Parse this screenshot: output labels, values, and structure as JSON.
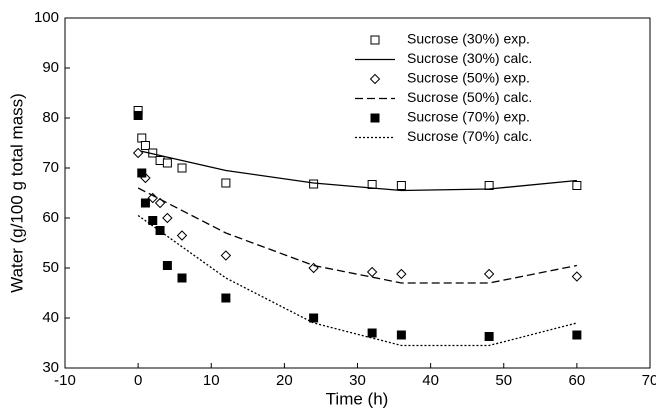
{
  "chart_data": {
    "type": "line",
    "xlabel": "Time (h)",
    "ylabel": "Water (g/100 g total mass)",
    "xlim": [
      -10,
      70
    ],
    "xticks": [
      -10,
      0,
      10,
      20,
      30,
      40,
      50,
      60,
      70
    ],
    "ylim": [
      30,
      100
    ],
    "yticks": [
      30,
      40,
      50,
      60,
      70,
      80,
      90,
      100
    ],
    "legend": "upper-right",
    "series": [
      {
        "name": "Sucrose (30%) exp.",
        "color": "#000000",
        "marker": "open-square",
        "x": [
          0,
          0.5,
          1,
          2,
          3,
          4,
          6,
          12,
          24,
          32,
          36,
          48,
          60
        ],
        "values": [
          81.5,
          76,
          74.5,
          73,
          71.5,
          71,
          70,
          67,
          66.8,
          66.7,
          66.5,
          66.5,
          66.5
        ]
      },
      {
        "name": "Sucrose (30%) calc.",
        "color": "#000000",
        "dash": "solid",
        "x": [
          0,
          12,
          24,
          36,
          48,
          60
        ],
        "values": [
          73.5,
          69.5,
          67,
          65.5,
          65.8,
          67.5
        ]
      },
      {
        "name": "Sucrose (50%) exp.",
        "color": "#000000",
        "marker": "open-diamond",
        "x": [
          0,
          1,
          2,
          3,
          4,
          6,
          12,
          24,
          32,
          36,
          48,
          60
        ],
        "values": [
          73,
          68,
          64,
          63,
          60,
          56.5,
          52.5,
          50,
          49.2,
          48.8,
          48.8,
          48.3
        ]
      },
      {
        "name": "Sucrose (50%) calc.",
        "color": "#000000",
        "dash": "dashed",
        "x": [
          0,
          12,
          24,
          36,
          48,
          60
        ],
        "values": [
          66,
          57,
          50.5,
          47,
          47,
          50.5
        ]
      },
      {
        "name": "Sucrose (70%) exp.",
        "color": "#000000",
        "marker": "filled-square",
        "x": [
          0,
          0.5,
          1,
          2,
          3,
          4,
          6,
          12,
          24,
          32,
          36,
          48,
          60
        ],
        "values": [
          80.5,
          69,
          63,
          59.5,
          57.5,
          50.5,
          48,
          44,
          40,
          37,
          36.6,
          36.3,
          36.6
        ]
      },
      {
        "name": "Sucrose (70%) calc.",
        "color": "#000000",
        "dash": "dotted",
        "x": [
          0,
          12,
          24,
          36,
          48,
          60
        ],
        "values": [
          60.5,
          48,
          39,
          34.5,
          34.5,
          39
        ]
      }
    ]
  }
}
